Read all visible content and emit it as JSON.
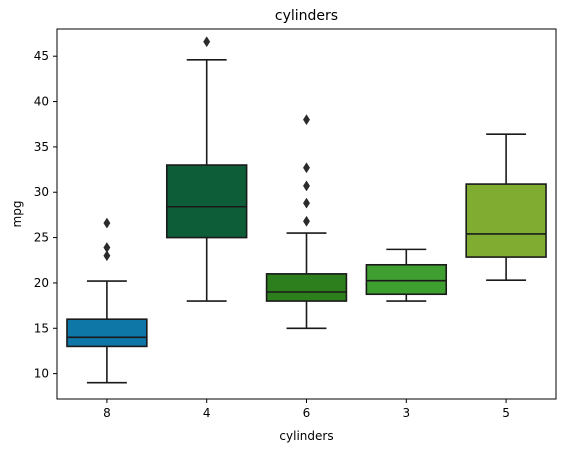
{
  "chart_data": {
    "type": "box",
    "title": "cylinders",
    "xlabel": "cylinders",
    "ylabel": "mpg",
    "ylim": [
      7.2,
      48.0
    ],
    "yticks": [
      10,
      15,
      20,
      25,
      30,
      35,
      40,
      45
    ],
    "grid": false,
    "categories": [
      "8",
      "4",
      "6",
      "3",
      "5"
    ],
    "boxes": [
      {
        "category": "8",
        "color": "#0e77a8",
        "whisker_low": 9.0,
        "q1": 13.0,
        "median": 14.0,
        "q3": 16.0,
        "whisker_high": 20.2,
        "outliers": [
          23.0,
          23.9,
          26.6
        ]
      },
      {
        "category": "4",
        "color": "#0d5e38",
        "whisker_low": 18.0,
        "q1": 25.0,
        "median": 28.4,
        "q3": 33.0,
        "whisker_high": 44.6,
        "outliers": [
          46.6
        ]
      },
      {
        "category": "6",
        "color": "#2d7e1c",
        "whisker_low": 15.0,
        "q1": 18.0,
        "median": 19.0,
        "q3": 21.0,
        "whisker_high": 25.5,
        "outliers": [
          26.8,
          28.8,
          30.7,
          32.7,
          38.0
        ]
      },
      {
        "category": "3",
        "color": "#3e9e2f",
        "whisker_low": 18.0,
        "q1": 18.75,
        "median": 20.25,
        "q3": 22.0,
        "whisker_high": 23.7,
        "outliers": []
      },
      {
        "category": "5",
        "color": "#80ac32",
        "whisker_low": 20.3,
        "q1": 22.85,
        "median": 25.4,
        "q3": 30.9,
        "whisker_high": 36.4,
        "outliers": []
      }
    ]
  }
}
